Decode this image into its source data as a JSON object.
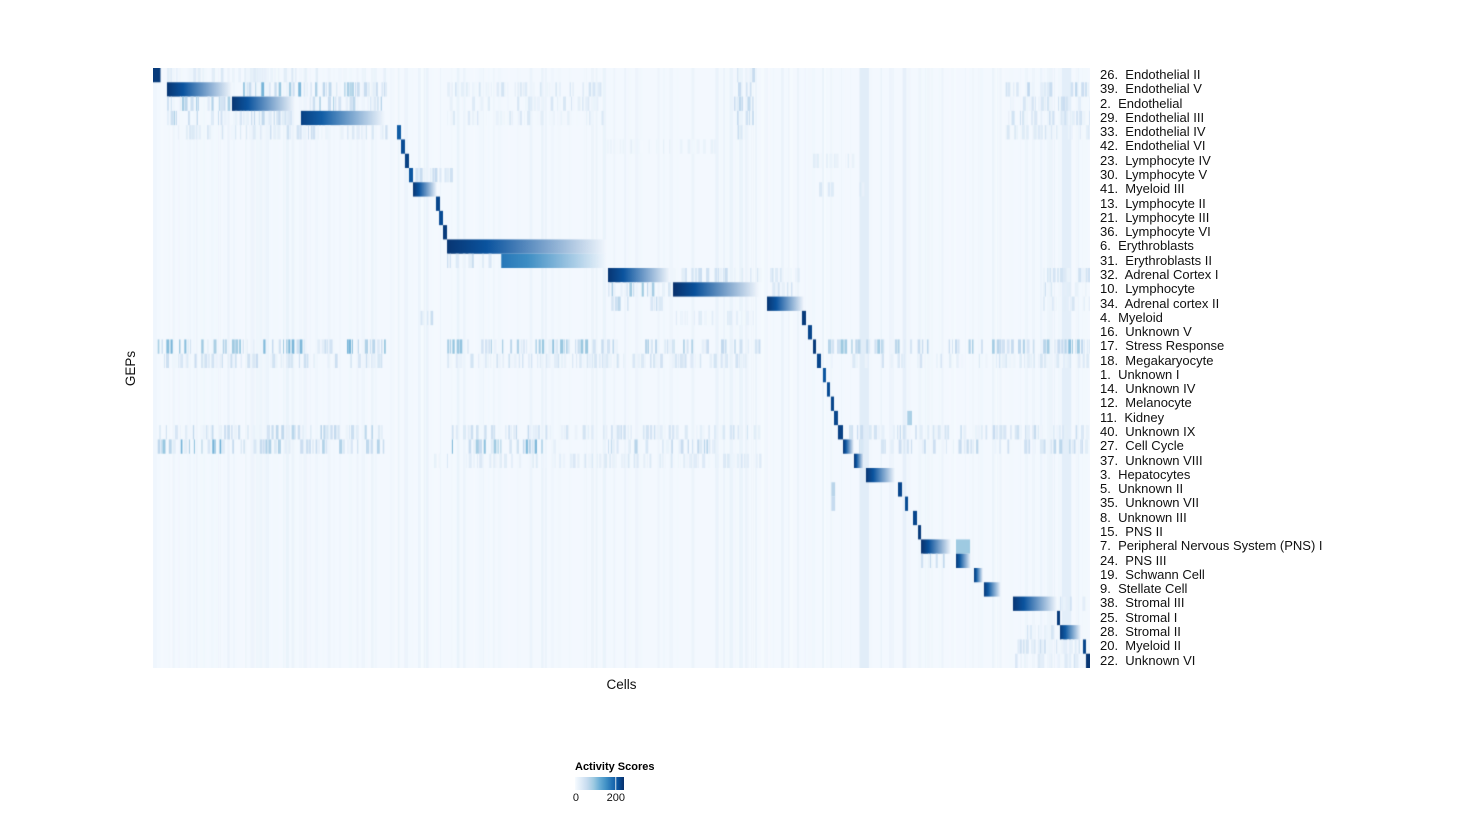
{
  "chart_data": {
    "type": "heatmap",
    "title": "",
    "xlabel": "Cells",
    "ylabel": "GEPs",
    "base_value": 5,
    "colorbar": {
      "title": "Activity Scores",
      "tick_labels": [
        "0",
        "200"
      ],
      "tick_values": [
        0,
        200
      ],
      "scale_max": 240,
      "palette": [
        "#f7fbff",
        "#deebf7",
        "#c6dbef",
        "#9ecae1",
        "#6baed6",
        "#4292c6",
        "#2171b5",
        "#08519c",
        "#08306b"
      ]
    },
    "n_rows": 42,
    "global_streaks": [
      {
        "x": 0.754,
        "w": 0.01,
        "v": 26
      },
      {
        "x": 0.8,
        "w": 0.004,
        "v": 20
      },
      {
        "x": 0.97,
        "w": 0.01,
        "v": 24
      }
    ],
    "rows": [
      {
        "label": "26.  Endothelial II",
        "bands": [
          {
            "s": 0.0,
            "e": 0.008,
            "v": 230,
            "style": "flat"
          },
          {
            "s": 0.015,
            "e": 0.25,
            "v": 25,
            "style": "stripes"
          },
          {
            "s": 0.62,
            "e": 0.64,
            "v": 50,
            "style": "stripes"
          }
        ]
      },
      {
        "label": "39.  Endothelial V",
        "bands": [
          {
            "s": 0.0149,
            "e": 0.0843,
            "v": 235,
            "style": "fade"
          },
          {
            "s": 0.0843,
            "e": 0.155,
            "v": 80,
            "style": "stripes"
          },
          {
            "s": 0.158,
            "e": 0.248,
            "v": 65,
            "style": "stripes"
          },
          {
            "s": 0.314,
            "e": 0.48,
            "v": 30,
            "style": "stripes"
          },
          {
            "s": 0.62,
            "e": 0.64,
            "v": 70,
            "style": "stripes"
          },
          {
            "s": 0.91,
            "e": 1.0,
            "v": 45,
            "style": "stripes"
          }
        ]
      },
      {
        "label": "2.  Endothelial",
        "bands": [
          {
            "s": 0.015,
            "e": 0.084,
            "v": 70,
            "style": "stripes"
          },
          {
            "s": 0.0843,
            "e": 0.1515,
            "v": 235,
            "style": "fade"
          },
          {
            "s": 0.158,
            "e": 0.248,
            "v": 55,
            "style": "stripes"
          },
          {
            "s": 0.314,
            "e": 0.48,
            "v": 28,
            "style": "stripes"
          },
          {
            "s": 0.62,
            "e": 0.64,
            "v": 60,
            "style": "stripes"
          },
          {
            "s": 0.91,
            "e": 1.0,
            "v": 40,
            "style": "stripes"
          }
        ]
      },
      {
        "label": "29.  Endothelial III",
        "bands": [
          {
            "s": 0.015,
            "e": 0.084,
            "v": 50,
            "style": "stripes"
          },
          {
            "s": 0.084,
            "e": 0.155,
            "v": 45,
            "style": "stripes"
          },
          {
            "s": 0.1579,
            "e": 0.2476,
            "v": 225,
            "style": "fade"
          },
          {
            "s": 0.314,
            "e": 0.48,
            "v": 25,
            "style": "stripes"
          },
          {
            "s": 0.62,
            "e": 0.64,
            "v": 55,
            "style": "stripes"
          },
          {
            "s": 0.91,
            "e": 1.0,
            "v": 35,
            "style": "stripes"
          }
        ]
      },
      {
        "label": "33.  Endothelial IV",
        "bands": [
          {
            "s": 0.015,
            "e": 0.248,
            "v": 35,
            "style": "stripes"
          },
          {
            "s": 0.2604,
            "e": 0.2647,
            "v": 200,
            "style": "flat"
          },
          {
            "s": 0.62,
            "e": 0.64,
            "v": 45,
            "style": "stripes"
          },
          {
            "s": 0.91,
            "e": 1.0,
            "v": 30,
            "style": "stripes"
          }
        ]
      },
      {
        "label": "42.  Endothelial VI",
        "bands": [
          {
            "s": 0.2647,
            "e": 0.2689,
            "v": 215,
            "style": "flat"
          },
          {
            "s": 0.48,
            "e": 0.6,
            "v": 15,
            "style": "stripes"
          }
        ]
      },
      {
        "label": "23.  Lymphocyte IV",
        "bands": [
          {
            "s": 0.2689,
            "e": 0.2732,
            "v": 225,
            "style": "flat"
          },
          {
            "s": 0.7,
            "e": 0.75,
            "v": 20,
            "style": "stripes"
          }
        ]
      },
      {
        "label": "30.  Lymphocyte V",
        "bands": [
          {
            "s": 0.2732,
            "e": 0.2775,
            "v": 205,
            "style": "flat"
          },
          {
            "s": 0.28,
            "e": 0.32,
            "v": 40,
            "style": "stripes"
          }
        ]
      },
      {
        "label": "41.  Myeloid III",
        "bands": [
          {
            "s": 0.2775,
            "e": 0.3031,
            "v": 235,
            "style": "fade"
          },
          {
            "s": 0.7,
            "e": 0.76,
            "v": 25,
            "style": "stripes"
          }
        ]
      },
      {
        "label": "13.  Lymphocyte II",
        "bands": [
          {
            "s": 0.302,
            "e": 0.3063,
            "v": 220,
            "style": "flat"
          }
        ]
      },
      {
        "label": "21.  Lymphocyte III",
        "bands": [
          {
            "s": 0.3053,
            "e": 0.3095,
            "v": 215,
            "style": "flat"
          }
        ]
      },
      {
        "label": "36.  Lymphocyte VI",
        "bands": [
          {
            "s": 0.3095,
            "e": 0.3138,
            "v": 230,
            "style": "flat"
          }
        ]
      },
      {
        "label": "6.  Erythroblasts",
        "bands": [
          {
            "s": 0.3138,
            "e": 0.4845,
            "v": 235,
            "style": "fade"
          }
        ]
      },
      {
        "label": "31.  Erythroblasts II",
        "bands": [
          {
            "s": 0.3138,
            "e": 0.37,
            "v": 45,
            "style": "stripes"
          },
          {
            "s": 0.3717,
            "e": 0.4845,
            "v": 175,
            "style": "fade"
          }
        ]
      },
      {
        "label": "32.  Adrenal Cortex I",
        "bands": [
          {
            "s": 0.4856,
            "e": 0.5517,
            "v": 235,
            "style": "fade"
          },
          {
            "s": 0.555,
            "e": 0.647,
            "v": 38,
            "style": "stripes"
          },
          {
            "s": 0.655,
            "e": 0.695,
            "v": 28,
            "style": "stripes"
          },
          {
            "s": 0.95,
            "e": 1.0,
            "v": 35,
            "style": "stripes"
          }
        ]
      },
      {
        "label": "10.  Lymphocyte",
        "bands": [
          {
            "s": 0.4856,
            "e": 0.5517,
            "v": 60,
            "style": "stripes"
          },
          {
            "s": 0.555,
            "e": 0.6468,
            "v": 240,
            "style": "fade"
          },
          {
            "s": 0.655,
            "e": 0.69,
            "v": 30,
            "style": "stripes"
          },
          {
            "s": 0.95,
            "e": 1.0,
            "v": 35,
            "style": "stripes"
          }
        ]
      },
      {
        "label": "34.  Adrenal cortex II",
        "bands": [
          {
            "s": 0.4856,
            "e": 0.5517,
            "v": 48,
            "style": "stripes"
          },
          {
            "s": 0.6553,
            "e": 0.6948,
            "v": 235,
            "style": "fade"
          },
          {
            "s": 0.95,
            "e": 1.0,
            "v": 30,
            "style": "stripes"
          }
        ]
      },
      {
        "label": "4.  Myeloid",
        "bands": [
          {
            "s": 0.274,
            "e": 0.3,
            "v": 40,
            "style": "stripes"
          },
          {
            "s": 0.555,
            "e": 0.64,
            "v": 20,
            "style": "stripes"
          },
          {
            "s": 0.6926,
            "e": 0.6969,
            "v": 230,
            "style": "flat"
          }
        ]
      },
      {
        "label": "16.  Unknown V",
        "bands": [
          {
            "s": 0.699,
            "e": 0.7033,
            "v": 220,
            "style": "flat"
          }
        ]
      },
      {
        "label": "17.  Stress Response",
        "bands": [
          {
            "s": 0.005,
            "e": 0.248,
            "v": 75,
            "style": "stripes"
          },
          {
            "s": 0.314,
            "e": 0.4845,
            "v": 65,
            "style": "stripes"
          },
          {
            "s": 0.4856,
            "e": 0.647,
            "v": 55,
            "style": "stripes"
          },
          {
            "s": 0.7044,
            "e": 0.7076,
            "v": 230,
            "style": "flat"
          },
          {
            "s": 0.715,
            "e": 0.95,
            "v": 60,
            "style": "stripes"
          },
          {
            "s": 0.95,
            "e": 1.0,
            "v": 70,
            "style": "stripes"
          }
        ]
      },
      {
        "label": "18.  Megakaryocyte",
        "bands": [
          {
            "s": 0.005,
            "e": 0.248,
            "v": 38,
            "style": "stripes"
          },
          {
            "s": 0.314,
            "e": 0.647,
            "v": 32,
            "style": "stripes"
          },
          {
            "s": 0.7086,
            "e": 0.7129,
            "v": 220,
            "style": "flat"
          },
          {
            "s": 0.72,
            "e": 1.0,
            "v": 30,
            "style": "stripes"
          }
        ]
      },
      {
        "label": "1.  Unknown I",
        "bands": [
          {
            "s": 0.715,
            "e": 0.7182,
            "v": 205,
            "style": "flat"
          }
        ]
      },
      {
        "label": "14.  Unknown IV",
        "bands": [
          {
            "s": 0.7193,
            "e": 0.7225,
            "v": 215,
            "style": "flat"
          }
        ]
      },
      {
        "label": "12.  Melanocyte",
        "bands": [
          {
            "s": 0.7235,
            "e": 0.7268,
            "v": 220,
            "style": "flat"
          }
        ]
      },
      {
        "label": "11.  Kidney",
        "bands": [
          {
            "s": 0.7268,
            "e": 0.731,
            "v": 220,
            "style": "flat"
          },
          {
            "s": 0.805,
            "e": 0.81,
            "v": 80,
            "style": "flat"
          }
        ]
      },
      {
        "label": "40.  Unknown IX",
        "bands": [
          {
            "s": 0.005,
            "e": 0.248,
            "v": 48,
            "style": "stripes"
          },
          {
            "s": 0.314,
            "e": 0.4845,
            "v": 42,
            "style": "stripes"
          },
          {
            "s": 0.4856,
            "e": 0.647,
            "v": 35,
            "style": "stripes"
          },
          {
            "s": 0.731,
            "e": 0.7364,
            "v": 225,
            "style": "flat"
          },
          {
            "s": 0.74,
            "e": 1.0,
            "v": 40,
            "style": "stripes"
          }
        ]
      },
      {
        "label": "27.  Cell Cycle",
        "bands": [
          {
            "s": 0.005,
            "e": 0.09,
            "v": 80,
            "style": "stripes"
          },
          {
            "s": 0.09,
            "e": 0.248,
            "v": 55,
            "style": "stripes"
          },
          {
            "s": 0.314,
            "e": 0.43,
            "v": 75,
            "style": "stripes"
          },
          {
            "s": 0.4856,
            "e": 0.6,
            "v": 50,
            "style": "stripes"
          },
          {
            "s": 0.7364,
            "e": 0.7481,
            "v": 235,
            "style": "fade"
          },
          {
            "s": 0.75,
            "e": 1.0,
            "v": 45,
            "style": "stripes"
          }
        ]
      },
      {
        "label": "37.  Unknown VIII",
        "bands": [
          {
            "s": 0.3,
            "e": 0.647,
            "v": 25,
            "style": "stripes"
          },
          {
            "s": 0.7481,
            "e": 0.7588,
            "v": 235,
            "style": "fade"
          }
        ]
      },
      {
        "label": "3.  Hepatocytes",
        "bands": [
          {
            "s": 0.7609,
            "e": 0.7919,
            "v": 235,
            "style": "fade"
          }
        ]
      },
      {
        "label": "5.  Unknown II",
        "bands": [
          {
            "s": 0.724,
            "e": 0.728,
            "v": 70,
            "style": "flat"
          },
          {
            "s": 0.7951,
            "e": 0.7994,
            "v": 220,
            "style": "flat"
          }
        ]
      },
      {
        "label": "35.  Unknown VII",
        "bands": [
          {
            "s": 0.724,
            "e": 0.728,
            "v": 60,
            "style": "flat"
          },
          {
            "s": 0.8026,
            "e": 0.8058,
            "v": 215,
            "style": "flat"
          }
        ]
      },
      {
        "label": "8.  Unknown III",
        "bands": [
          {
            "s": 0.8111,
            "e": 0.8154,
            "v": 220,
            "style": "flat"
          }
        ]
      },
      {
        "label": "15.  PNS II",
        "bands": [
          {
            "s": 0.8165,
            "e": 0.8197,
            "v": 230,
            "style": "flat"
          }
        ]
      },
      {
        "label": "7.  Peripheral Nervous System (PNS) I",
        "bands": [
          {
            "s": 0.8197,
            "e": 0.8517,
            "v": 240,
            "style": "fade"
          },
          {
            "s": 0.857,
            "e": 0.872,
            "v": 90,
            "style": "flat"
          }
        ]
      },
      {
        "label": "24.  PNS III",
        "bands": [
          {
            "s": 0.8197,
            "e": 0.85,
            "v": 50,
            "style": "stripes"
          },
          {
            "s": 0.857,
            "e": 0.8729,
            "v": 230,
            "style": "fade"
          }
        ]
      },
      {
        "label": "19.  Schwann Cell",
        "bands": [
          {
            "s": 0.8762,
            "e": 0.8858,
            "v": 230,
            "style": "fade"
          }
        ]
      },
      {
        "label": "9.  Stellate Cell",
        "bands": [
          {
            "s": 0.8868,
            "e": 0.905,
            "v": 230,
            "style": "fade"
          }
        ]
      },
      {
        "label": "38.  Stromal III",
        "bands": [
          {
            "s": 0.9178,
            "e": 0.9648,
            "v": 235,
            "style": "fade"
          },
          {
            "s": 0.968,
            "e": 1.0,
            "v": 45,
            "style": "stripes"
          }
        ]
      },
      {
        "label": "25.  Stromal I",
        "bands": [
          {
            "s": 0.9648,
            "e": 0.968,
            "v": 230,
            "style": "flat"
          }
        ]
      },
      {
        "label": "28.  Stromal II",
        "bands": [
          {
            "s": 0.93,
            "e": 0.96,
            "v": 40,
            "style": "stripes"
          },
          {
            "s": 0.968,
            "e": 0.9904,
            "v": 230,
            "style": "fade"
          }
        ]
      },
      {
        "label": "20.  Myeloid II",
        "bands": [
          {
            "s": 0.92,
            "e": 0.99,
            "v": 35,
            "style": "stripes"
          },
          {
            "s": 0.9925,
            "e": 0.9957,
            "v": 220,
            "style": "flat"
          }
        ]
      },
      {
        "label": "22.  Unknown VI",
        "bands": [
          {
            "s": 0.92,
            "e": 0.99,
            "v": 30,
            "style": "stripes"
          },
          {
            "s": 0.9957,
            "e": 1.0,
            "v": 235,
            "style": "flat"
          }
        ]
      }
    ]
  }
}
